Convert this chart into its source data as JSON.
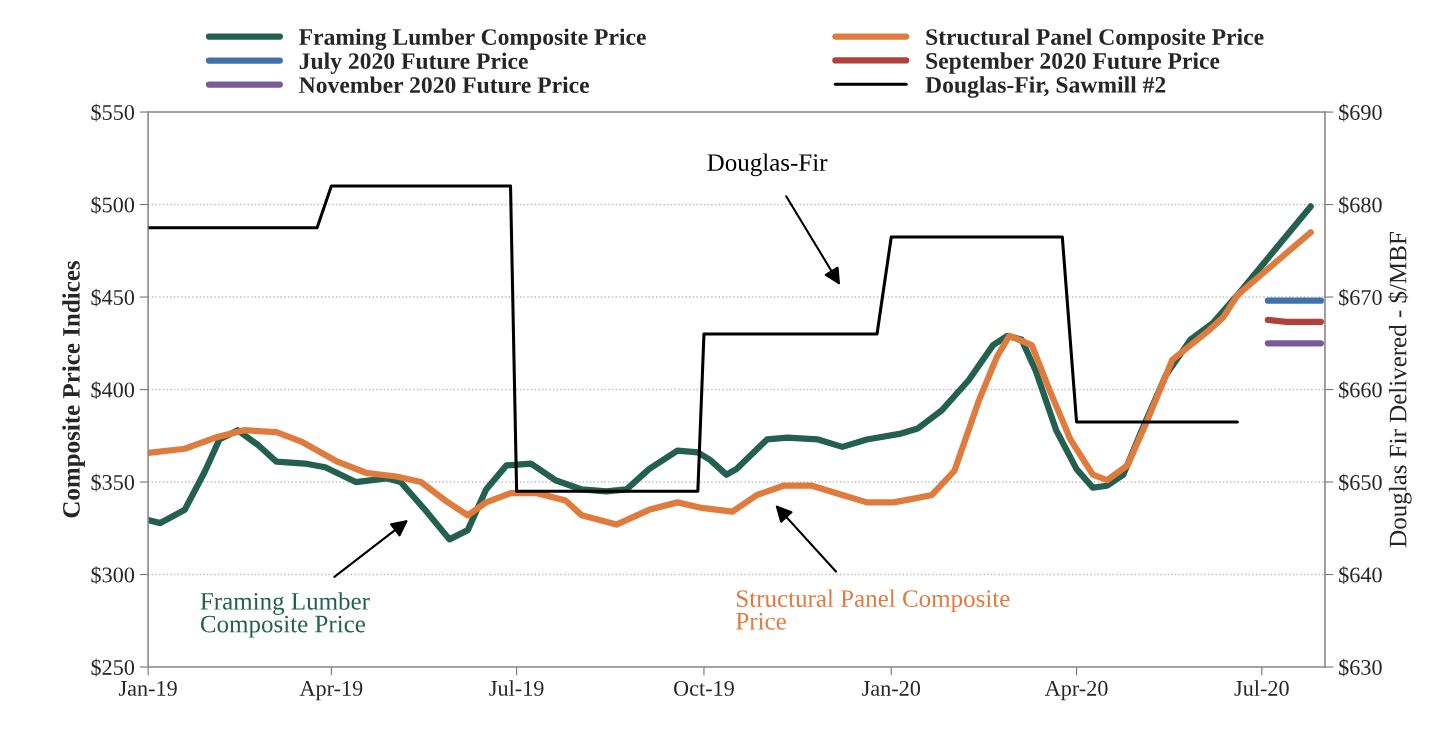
{
  "chart_data": {
    "type": "line",
    "xlim": [
      "2019-01-01",
      "2020-08-01"
    ],
    "xticks": [
      {
        "value": "2019-01",
        "label": "Jan-19"
      },
      {
        "value": "2019-04",
        "label": "Apr-19"
      },
      {
        "value": "2019-07",
        "label": "Jul-19"
      },
      {
        "value": "2019-10",
        "label": "Oct-19"
      },
      {
        "value": "2020-01",
        "label": "Jan-20"
      },
      {
        "value": "2020-04",
        "label": "Apr-20"
      },
      {
        "value": "2020-07",
        "label": "Jul-20"
      }
    ],
    "ylabel": "Composite Price Indices",
    "y2label": "Douglas Fir Delivered - $/MBF",
    "ylim": [
      250,
      550
    ],
    "yticks": [
      {
        "value": 250,
        "label": "$250"
      },
      {
        "value": 300,
        "label": "$300"
      },
      {
        "value": 350,
        "label": "$350"
      },
      {
        "value": 400,
        "label": "$400"
      },
      {
        "value": 450,
        "label": "$450"
      },
      {
        "value": 500,
        "label": "$500"
      },
      {
        "value": 550,
        "label": "$550"
      }
    ],
    "y2lim": [
      630,
      690
    ],
    "y2ticks": [
      {
        "value": 630,
        "label": "$630"
      },
      {
        "value": 640,
        "label": "$640"
      },
      {
        "value": 650,
        "label": "$650"
      },
      {
        "value": 660,
        "label": "$660"
      },
      {
        "value": 670,
        "label": "$670"
      },
      {
        "value": 680,
        "label": "$680"
      },
      {
        "value": 690,
        "label": "$690"
      }
    ],
    "grid": "y",
    "legend": "top",
    "series": [
      {
        "name": "Framing Lumber Composite Price",
        "color": "#24604f",
        "x": [
          "2019-01-01",
          "2019-01-07",
          "2019-01-19",
          "2019-01-29",
          "2019-02-05",
          "2019-02-14",
          "2019-02-24",
          "2019-03-05",
          "2019-03-19",
          "2019-03-29",
          "2019-04-13",
          "2019-04-28",
          "2019-05-05",
          "2019-05-17",
          "2019-05-29",
          "2019-06-07",
          "2019-06-16",
          "2019-06-26",
          "2019-07-08",
          "2019-07-20",
          "2019-08-02",
          "2019-08-14",
          "2019-08-24",
          "2019-09-04",
          "2019-09-18",
          "2019-09-28",
          "2019-10-04",
          "2019-10-12",
          "2019-10-17",
          "2019-11-01",
          "2019-11-11",
          "2019-11-26",
          "2019-12-08",
          "2019-12-20",
          "2020-01-05",
          "2020-01-14",
          "2020-01-26",
          "2020-02-08",
          "2020-02-20",
          "2020-02-27",
          "2020-03-05",
          "2020-03-12",
          "2020-03-22",
          "2020-04-01",
          "2020-04-09",
          "2020-04-16",
          "2020-04-24",
          "2020-05-03",
          "2020-05-15",
          "2020-05-27",
          "2020-06-07",
          "2020-06-19",
          "2020-07-25"
        ],
        "values": [
          329.5,
          327.8,
          335,
          356,
          373,
          378,
          370,
          361,
          360,
          358,
          350,
          352,
          350,
          335,
          319,
          324,
          346,
          359,
          360,
          351,
          346,
          345,
          346,
          357,
          367,
          366,
          362,
          354,
          357,
          373,
          374,
          373,
          369,
          373,
          376,
          379,
          389,
          405,
          424,
          429,
          427,
          410,
          378,
          357,
          347,
          348,
          354,
          378,
          408,
          427,
          436,
          451,
          499
        ]
      },
      {
        "name": "Structural Panel Composite Price",
        "color": "#e07b3e",
        "x": [
          "2019-01-01",
          "2019-01-19",
          "2019-02-03",
          "2019-02-17",
          "2019-03-05",
          "2019-03-17",
          "2019-04-04",
          "2019-04-18",
          "2019-05-03",
          "2019-05-15",
          "2019-05-27",
          "2019-06-07",
          "2019-06-16",
          "2019-06-28",
          "2019-07-11",
          "2019-07-25",
          "2019-08-02",
          "2019-08-19",
          "2019-09-04",
          "2019-09-18",
          "2019-09-30",
          "2019-10-15",
          "2019-10-27",
          "2019-11-09",
          "2019-11-23",
          "2019-12-08",
          "2019-12-20",
          "2020-01-02",
          "2020-01-12",
          "2020-01-21",
          "2020-02-01",
          "2020-02-13",
          "2020-02-22",
          "2020-02-28",
          "2020-03-10",
          "2020-03-19",
          "2020-03-29",
          "2020-04-09",
          "2020-04-16",
          "2020-04-26",
          "2020-05-06",
          "2020-05-18",
          "2020-06-05",
          "2020-06-12",
          "2020-06-19",
          "2020-07-25"
        ],
        "values": [
          365.7,
          368,
          374,
          378,
          377,
          372,
          361,
          355,
          353,
          350,
          340,
          332,
          339,
          344,
          344,
          340,
          332,
          327,
          335,
          339,
          336,
          334,
          343,
          348,
          348,
          343,
          339,
          339,
          341,
          343,
          356,
          394,
          418,
          429,
          424,
          399,
          373,
          354,
          351,
          359,
          384,
          416,
          432,
          439,
          451,
          485
        ]
      },
      {
        "name": "July 2020 Future Price",
        "color": "#3f72ad",
        "x": [
          "2020-07-04",
          "2020-07-30"
        ],
        "values": [
          448,
          448
        ]
      },
      {
        "name": "September 2020 Future Price",
        "color": "#b0403a",
        "x": [
          "2020-07-04",
          "2020-07-13",
          "2020-07-30"
        ],
        "values": [
          437.6,
          436.6,
          436.6
        ]
      },
      {
        "name": "November 2020 Future Price",
        "color": "#7a5a98",
        "x": [
          "2020-07-04",
          "2020-07-30"
        ],
        "values": [
          425,
          425
        ]
      },
      {
        "name": "Douglas-Fir, Sawmill #2",
        "color": "#000000",
        "axis": "y2",
        "x": [
          "2019-01-01",
          "2019-03-25",
          "2019-04-01",
          "2019-06-28",
          "2019-07-01",
          "2019-09-28",
          "2019-10-01",
          "2019-12-25",
          "2020-01-01",
          "2020-03-25",
          "2020-04-01",
          "2020-06-19"
        ],
        "values": [
          677.5,
          677.5,
          682,
          682,
          649,
          649,
          666,
          666,
          676.5,
          676.5,
          656.5,
          656.5
        ]
      }
    ],
    "annotations": [
      "Douglas-Fir",
      "Framing Lumber\nComposite Price",
      "Structural Panel Composite\nPrice"
    ]
  }
}
